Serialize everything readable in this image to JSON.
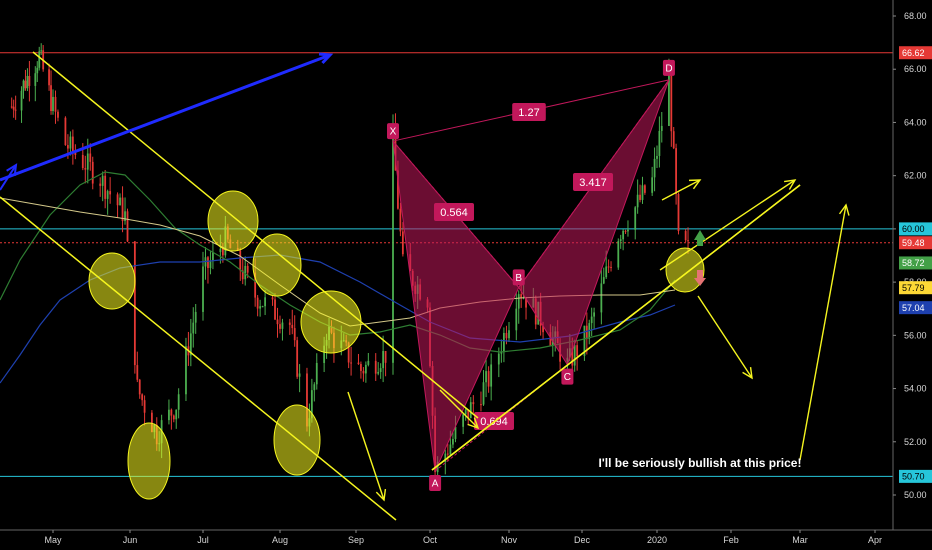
{
  "chart_data": {
    "type": "line",
    "y_axis": {
      "range": [
        49.5,
        68.5
      ],
      "ticks": [
        "50.00",
        "52.00",
        "54.00",
        "56.00",
        "58.00",
        "60.00",
        "62.00",
        "64.00",
        "66.00",
        "68.00"
      ]
    },
    "x_axis": {
      "ticks": [
        "May",
        "Jun",
        "Jul",
        "Aug",
        "Sep",
        "Oct",
        "Nov",
        "Dec",
        "2020",
        "Feb",
        "Mar",
        "Apr"
      ]
    },
    "price_badges": [
      {
        "label": "66.62",
        "value": 66.62,
        "color": "#e53935",
        "text_color": "#ffffff"
      },
      {
        "label": "60.00",
        "value": 60.0,
        "color": "#26c6da",
        "text_color": "#000000"
      },
      {
        "label": "59.48",
        "value": 59.48,
        "color": "#e53935",
        "text_color": "#ffffff"
      },
      {
        "label": "58.72",
        "value": 58.72,
        "color": "#43a047",
        "text_color": "#ffffff"
      },
      {
        "label": "57.79",
        "value": 57.79,
        "color": "#fdd835",
        "text_color": "#000000"
      },
      {
        "label": "57.04",
        "value": 57.04,
        "color": "#1e40af",
        "text_color": "#ffffff"
      },
      {
        "label": "50.70",
        "value": 50.7,
        "color": "#26c6da",
        "text_color": "#000000"
      }
    ],
    "horizontal_lines": [
      {
        "value": 66.62,
        "color": "#e53935",
        "style": "solid"
      },
      {
        "value": 60.0,
        "color": "#26c6da",
        "style": "solid"
      },
      {
        "value": 59.48,
        "color": "#e53935",
        "style": "dotted"
      },
      {
        "value": 50.7,
        "color": "#26c6da",
        "style": "solid"
      }
    ],
    "pattern": {
      "points": [
        {
          "label": "X",
          "date": "2019-09-16",
          "value": 63.3
        },
        {
          "label": "A",
          "date": "2019-10-03",
          "value": 50.9
        },
        {
          "label": "B",
          "date": "2019-11-05",
          "value": 57.8
        },
        {
          "label": "C",
          "date": "2019-11-25",
          "value": 54.9
        },
        {
          "label": "D",
          "date": "2020-01-06",
          "value": 65.6
        }
      ],
      "ratios": [
        {
          "label": "0.564"
        },
        {
          "label": "0.694"
        },
        {
          "label": "3.417"
        },
        {
          "label": "1.27"
        }
      ],
      "color": "#c2185b"
    },
    "annotations": [
      {
        "text": "I'll be seriously bullish at this price!"
      }
    ],
    "colors": {
      "up_candle": "#4caf50",
      "down_candle": "#e53935",
      "trend_lines": "#f5f51f",
      "blue_arrow": "#1f2bff"
    },
    "grid": false
  }
}
